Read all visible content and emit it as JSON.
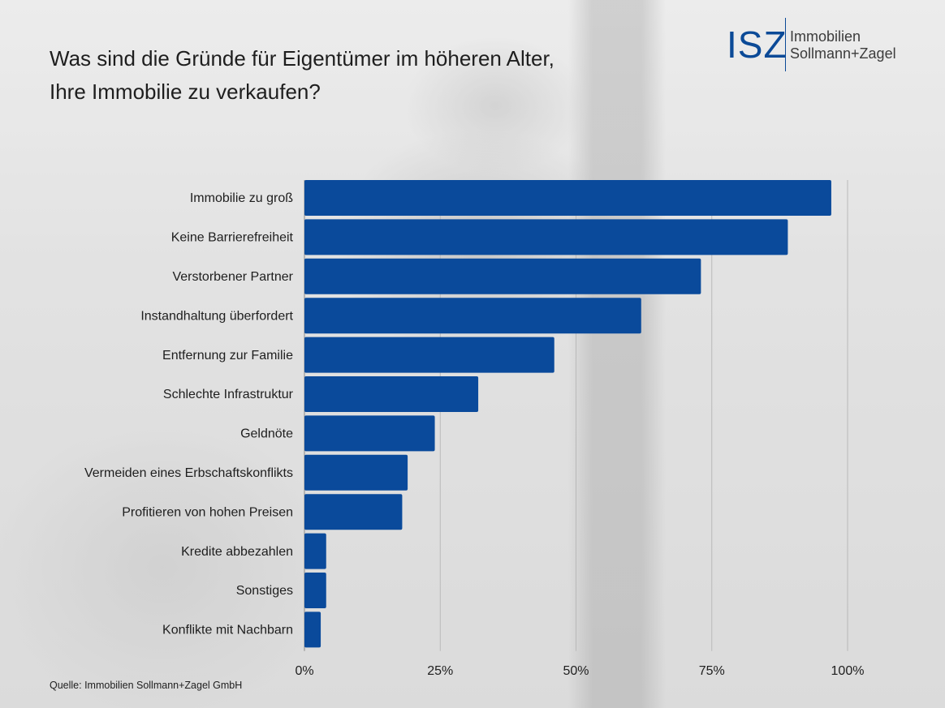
{
  "title_lines": [
    "Was sind die Gründe für Eigentümer im höheren Alter,",
    "Ihre Immobilie zu verkaufen?"
  ],
  "logo": {
    "mark": "ISZ",
    "text_lines": [
      "Immobilien",
      "Sollmann+Zagel"
    ],
    "color": "#0b4a97"
  },
  "source": "Quelle: Immobilien Sollmann+Zagel GmbH",
  "chart_data": {
    "type": "bar",
    "orientation": "horizontal",
    "categories": [
      "Immobilie zu groß",
      "Keine Barrierefreiheit",
      "Verstorbener Partner",
      "Instandhaltung überfordert",
      "Entfernung zur Familie",
      "Schlechte Infrastruktur",
      "Geldnöte",
      "Vermeiden eines Erbschaftskonflikts",
      "Profitieren von hohen Preisen",
      "Kredite abbezahlen",
      "Sonstiges",
      "Konflikte mit Nachbarn"
    ],
    "values": [
      97,
      89,
      73,
      62,
      46,
      32,
      24,
      19,
      18,
      4,
      4,
      3
    ],
    "unit": "%",
    "xlim": [
      0,
      100
    ],
    "xticks": [
      "0%",
      "25%",
      "50%",
      "75%",
      "100%"
    ],
    "grid": true,
    "bar_color": "#0a4a9b"
  }
}
